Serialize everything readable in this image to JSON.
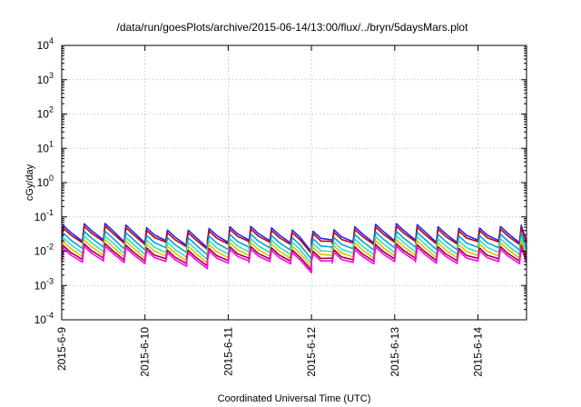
{
  "chart_data": {
    "type": "line",
    "title": "/data/run/goesPlots/archive/2015-06-14/13:00/flux/../bryn/5daysMars.plot",
    "xlabel": "Coordinated Universal Time (UTC)",
    "ylabel": "cGy/day",
    "y_scale": "log",
    "ylim": [
      0.0001,
      10000
    ],
    "xlim": [
      "2015-06-09T00:00",
      "2015-06-14T14:00"
    ],
    "grid": true,
    "y_ticks": [
      {
        "base": "10",
        "exp": "-4",
        "value": 0.0001
      },
      {
        "base": "10",
        "exp": "-3",
        "value": 0.001
      },
      {
        "base": "10",
        "exp": "-2",
        "value": 0.01
      },
      {
        "base": "10",
        "exp": "-1",
        "value": 0.1
      },
      {
        "base": "10",
        "exp": "0",
        "value": 1
      },
      {
        "base": "10",
        "exp": "1",
        "value": 10
      },
      {
        "base": "10",
        "exp": "2",
        "value": 100
      },
      {
        "base": "10",
        "exp": "3",
        "value": 1000
      },
      {
        "base": "10",
        "exp": "4",
        "value": 10000
      }
    ],
    "x_ticks": [
      {
        "label": "2015-6-9",
        "value": "2015-06-09T00:00"
      },
      {
        "label": "2015-6-10",
        "value": "2015-06-10T00:00"
      },
      {
        "label": "2015-6-11",
        "value": "2015-06-11T00:00"
      },
      {
        "label": "2015-6-12",
        "value": "2015-06-12T00:00"
      },
      {
        "label": "2015-6-13",
        "value": "2015-06-13T00:00"
      },
      {
        "label": "2015-6-14",
        "value": "2015-06-14T00:00"
      }
    ],
    "series": [
      {
        "color": "#2020ff",
        "peak": 0.05,
        "trough": 0.021
      },
      {
        "color": "#c00000",
        "peak": 0.042,
        "trough": 0.019
      },
      {
        "color": "#00a0e0",
        "peak": 0.03,
        "trough": 0.013
      },
      {
        "color": "#30e0c0",
        "peak": 0.022,
        "trough": 0.0095
      },
      {
        "color": "#e0c000",
        "peak": 0.017,
        "trough": 0.0075
      },
      {
        "color": "#a00030",
        "peak": 0.013,
        "trough": 0.0062
      },
      {
        "color": "#ff00ff",
        "peak": 0.011,
        "trough": 0.0052
      }
    ],
    "cycle_hours": 6,
    "dips": [
      {
        "x": "2015-06-10T15:00",
        "factor": 0.7
      },
      {
        "x": "2015-06-11T22:00",
        "factor": 0.5
      }
    ]
  }
}
